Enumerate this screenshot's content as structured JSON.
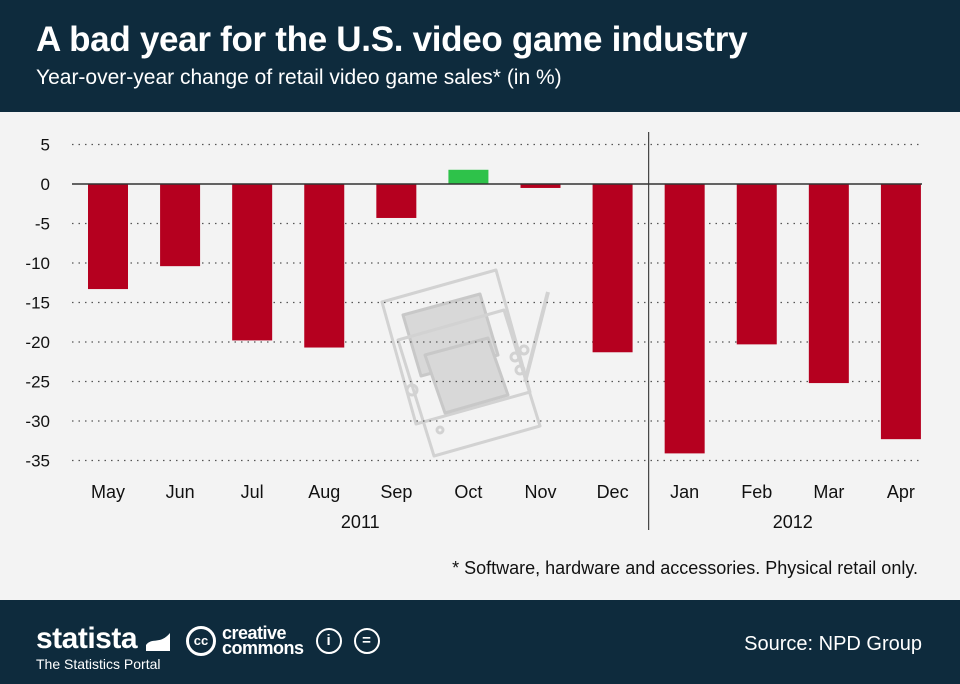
{
  "header": {
    "title": "A bad year for the U.S. video game industry",
    "subtitle": "Year-over-year change of retail video game sales* (in %)"
  },
  "chart_data": {
    "type": "bar",
    "title": "A bad year for the U.S. video game industry",
    "subtitle": "Year-over-year change of retail video game sales* (in %)",
    "xlabel": "",
    "ylabel": "",
    "categories": [
      "May",
      "Jun",
      "Jul",
      "Aug",
      "Sep",
      "Oct",
      "Nov",
      "Dec",
      "Jan",
      "Feb",
      "Mar",
      "Apr"
    ],
    "values": [
      -13.3,
      -10.4,
      -19.8,
      -20.7,
      -4.3,
      1.8,
      -0.5,
      -21.3,
      -34.1,
      -20.3,
      -25.2,
      -32.3
    ],
    "year_groups": [
      {
        "label": "2011",
        "count": 8
      },
      {
        "label": "2012",
        "count": 4
      }
    ],
    "ylim": [
      -37,
      5.5
    ],
    "yticks": [
      5,
      0,
      -5,
      -10,
      -15,
      -20,
      -25,
      -30,
      -35
    ],
    "grid": true,
    "colors": {
      "negative": "#b5001f",
      "positive": "#2ec24a"
    },
    "legend": "none"
  },
  "footnote": "* Software, hardware and accessories. Physical retail only.",
  "footer": {
    "brand": "statista",
    "brand_sub": "The Statistics Portal",
    "cc_logo": "cc",
    "cc_line1": "creative",
    "cc_line2": "commons",
    "icon_by": "i",
    "icon_nd": "=",
    "source": "Source: NPD Group"
  }
}
